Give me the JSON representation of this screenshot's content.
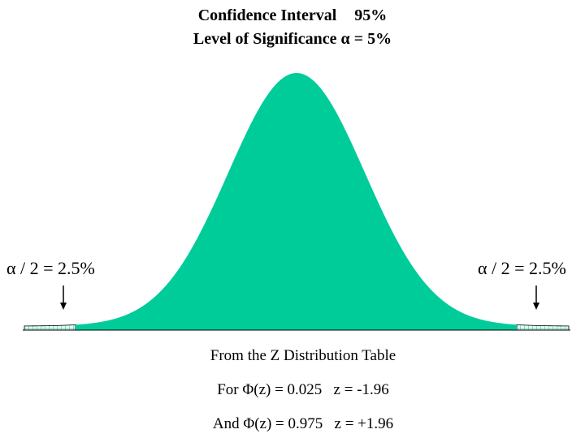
{
  "title": {
    "confidence_label": "Confidence Interval",
    "confidence_value": "95%",
    "significance_line": "Level of Significance  α = 5%"
  },
  "tails": {
    "left_label": "α / 2 = 2.5%",
    "right_label": "α / 2 = 2.5%"
  },
  "colors": {
    "fill": "#00cc99",
    "hatch": "#44aa88",
    "tail_fill": "#d9fbef"
  },
  "result": {
    "table_line": "From the Z Distribution Table",
    "lower_line": "For Φ(z) = 0.025   z = -1.96",
    "upper_line": "And Φ(z) = 0.975   z = +1.96"
  }
}
